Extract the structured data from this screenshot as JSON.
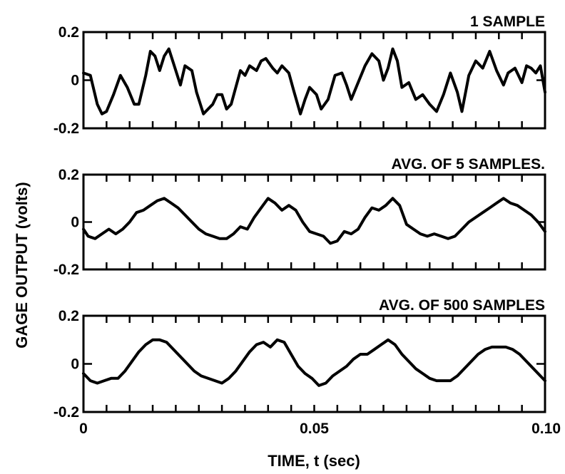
{
  "ylabel": "GAGE OUTPUT (volts)",
  "xlabel": "TIME, t (sec)",
  "x_tick_labels": [
    "0",
    "0.05",
    "0.10"
  ],
  "chart_data": [
    {
      "type": "line",
      "title": "1 SAMPLE",
      "xlim": [
        0,
        0.1
      ],
      "ylim": [
        -0.2,
        0.2
      ],
      "y_tick_labels": [
        "0.2",
        "0",
        "-0.2"
      ],
      "x": [
        0,
        0.0015,
        0.003,
        0.004,
        0.005,
        0.0065,
        0.008,
        0.0095,
        0.011,
        0.012,
        0.0135,
        0.0145,
        0.0155,
        0.0165,
        0.0175,
        0.0185,
        0.0195,
        0.021,
        0.022,
        0.0235,
        0.0245,
        0.026,
        0.027,
        0.028,
        0.029,
        0.03,
        0.031,
        0.032,
        0.033,
        0.034,
        0.035,
        0.036,
        0.0375,
        0.0385,
        0.0395,
        0.041,
        0.042,
        0.043,
        0.0445,
        0.0455,
        0.047,
        0.048,
        0.049,
        0.0505,
        0.0515,
        0.053,
        0.0545,
        0.056,
        0.057,
        0.058,
        0.0595,
        0.061,
        0.0625,
        0.064,
        0.065,
        0.066,
        0.067,
        0.068,
        0.069,
        0.0705,
        0.072,
        0.0735,
        0.075,
        0.0765,
        0.078,
        0.0795,
        0.081,
        0.082,
        0.0835,
        0.085,
        0.0865,
        0.088,
        0.0895,
        0.091,
        0.092,
        0.0935,
        0.095,
        0.096,
        0.097,
        0.098,
        0.099,
        0.1
      ],
      "y": [
        0.03,
        0.02,
        -0.1,
        -0.14,
        -0.13,
        -0.06,
        0.02,
        -0.03,
        -0.1,
        -0.1,
        0.02,
        0.12,
        0.1,
        0.04,
        0.1,
        0.13,
        0.07,
        -0.02,
        0.06,
        0.04,
        -0.05,
        -0.14,
        -0.12,
        -0.1,
        -0.06,
        -0.06,
        -0.12,
        -0.1,
        -0.03,
        0.04,
        0.02,
        0.06,
        0.04,
        0.08,
        0.09,
        0.05,
        0.03,
        0.06,
        0.03,
        -0.04,
        -0.14,
        -0.08,
        -0.03,
        -0.06,
        -0.12,
        -0.08,
        0.02,
        0.03,
        -0.02,
        -0.08,
        -0.01,
        0.06,
        0.11,
        0.08,
        0.0,
        0.05,
        0.13,
        0.08,
        -0.03,
        -0.01,
        -0.08,
        -0.06,
        -0.1,
        -0.13,
        -0.06,
        0.03,
        -0.05,
        -0.13,
        0.02,
        0.08,
        0.05,
        0.12,
        0.04,
        -0.02,
        0.03,
        0.05,
        -0.01,
        0.06,
        0.05,
        0.03,
        0.06,
        -0.05
      ]
    },
    {
      "type": "line",
      "title": "AVG. OF 5 SAMPLES.",
      "xlim": [
        0,
        0.1
      ],
      "ylim": [
        -0.2,
        0.2
      ],
      "y_tick_labels": [
        "0.2",
        "0",
        "-0.2"
      ],
      "x": [
        0,
        0.001,
        0.0025,
        0.004,
        0.0055,
        0.007,
        0.0085,
        0.01,
        0.0115,
        0.013,
        0.0145,
        0.016,
        0.0175,
        0.019,
        0.0205,
        0.022,
        0.0235,
        0.025,
        0.0265,
        0.028,
        0.0295,
        0.031,
        0.0325,
        0.034,
        0.0355,
        0.037,
        0.0385,
        0.04,
        0.0415,
        0.043,
        0.0445,
        0.046,
        0.0475,
        0.049,
        0.0505,
        0.052,
        0.0535,
        0.055,
        0.0565,
        0.058,
        0.0595,
        0.061,
        0.0625,
        0.064,
        0.0655,
        0.067,
        0.0685,
        0.07,
        0.0715,
        0.073,
        0.0745,
        0.076,
        0.0775,
        0.079,
        0.0805,
        0.082,
        0.0835,
        0.085,
        0.0865,
        0.088,
        0.0895,
        0.091,
        0.0925,
        0.094,
        0.0955,
        0.097,
        0.0985,
        0.1
      ],
      "y": [
        -0.03,
        -0.06,
        -0.07,
        -0.05,
        -0.03,
        -0.05,
        -0.03,
        0.0,
        0.04,
        0.05,
        0.07,
        0.09,
        0.1,
        0.08,
        0.06,
        0.03,
        0.0,
        -0.03,
        -0.05,
        -0.06,
        -0.07,
        -0.07,
        -0.05,
        -0.02,
        -0.03,
        0.02,
        0.06,
        0.1,
        0.08,
        0.05,
        0.07,
        0.05,
        0.0,
        -0.04,
        -0.05,
        -0.06,
        -0.09,
        -0.08,
        -0.04,
        -0.05,
        -0.03,
        0.02,
        0.06,
        0.05,
        0.07,
        0.1,
        0.07,
        -0.01,
        -0.03,
        -0.05,
        -0.06,
        -0.05,
        -0.06,
        -0.07,
        -0.06,
        -0.03,
        0.0,
        0.02,
        0.04,
        0.06,
        0.08,
        0.1,
        0.08,
        0.07,
        0.05,
        0.03,
        0.0,
        -0.04
      ]
    },
    {
      "type": "line",
      "title": "AVG. OF 500 SAMPLES",
      "xlim": [
        0,
        0.1
      ],
      "ylim": [
        -0.2,
        0.2
      ],
      "y_tick_labels": [
        "0.2",
        "0",
        "-0.2"
      ],
      "x": [
        0,
        0.0015,
        0.003,
        0.0045,
        0.006,
        0.0075,
        0.009,
        0.0105,
        0.012,
        0.0135,
        0.015,
        0.0165,
        0.018,
        0.0195,
        0.021,
        0.0225,
        0.024,
        0.0255,
        0.027,
        0.0285,
        0.03,
        0.0315,
        0.033,
        0.0345,
        0.036,
        0.0375,
        0.039,
        0.0405,
        0.042,
        0.0435,
        0.045,
        0.0465,
        0.048,
        0.0495,
        0.051,
        0.0525,
        0.054,
        0.0555,
        0.057,
        0.0585,
        0.06,
        0.0615,
        0.063,
        0.0645,
        0.066,
        0.0675,
        0.069,
        0.0705,
        0.072,
        0.0735,
        0.075,
        0.0765,
        0.078,
        0.0795,
        0.081,
        0.0825,
        0.084,
        0.0855,
        0.087,
        0.0885,
        0.09,
        0.0915,
        0.093,
        0.0945,
        0.096,
        0.0975,
        0.099,
        0.1
      ],
      "y": [
        -0.04,
        -0.07,
        -0.08,
        -0.07,
        -0.06,
        -0.06,
        -0.03,
        0.01,
        0.05,
        0.08,
        0.1,
        0.1,
        0.09,
        0.06,
        0.03,
        0.0,
        -0.03,
        -0.05,
        -0.06,
        -0.07,
        -0.08,
        -0.06,
        -0.03,
        0.01,
        0.05,
        0.08,
        0.09,
        0.07,
        0.1,
        0.09,
        0.04,
        -0.01,
        -0.04,
        -0.06,
        -0.09,
        -0.08,
        -0.05,
        -0.03,
        -0.01,
        0.02,
        0.04,
        0.04,
        0.06,
        0.08,
        0.1,
        0.08,
        0.04,
        0.01,
        -0.02,
        -0.04,
        -0.06,
        -0.07,
        -0.07,
        -0.07,
        -0.05,
        -0.02,
        0.01,
        0.04,
        0.06,
        0.07,
        0.07,
        0.07,
        0.06,
        0.04,
        0.01,
        -0.02,
        -0.05,
        -0.07
      ]
    }
  ]
}
